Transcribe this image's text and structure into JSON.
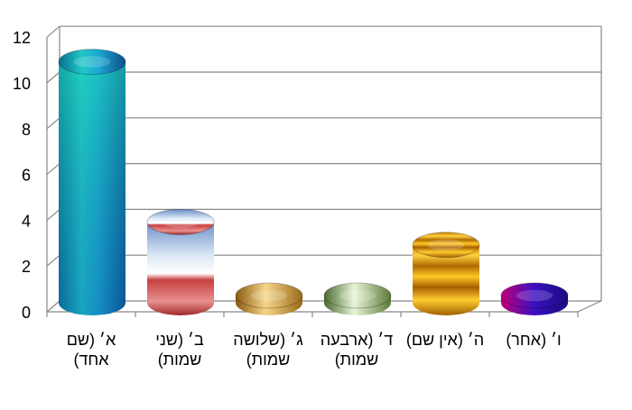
{
  "chart_data": {
    "type": "bar",
    "categories": [
      "א׳ (שם אחד)",
      "ב׳ (שני שמות)",
      "ג׳ (שלושה שמות)",
      "ד׳ (ארבעה שמות)",
      "ה׳ (אין שם)",
      "ו׳ (אחר)"
    ],
    "values": [
      11,
      4,
      0.5,
      0.5,
      3,
      0.5
    ],
    "ylim": [
      0,
      12
    ],
    "yticks": [
      "0",
      "2",
      "4",
      "6",
      "8",
      "10",
      "12"
    ],
    "grid": true,
    "legend": "none",
    "bar_colors": [
      "#0fa3b8",
      "#b7c9e8",
      "#d8a42a",
      "#a9c98a",
      "#f0a800",
      "#5a1aa0"
    ]
  }
}
